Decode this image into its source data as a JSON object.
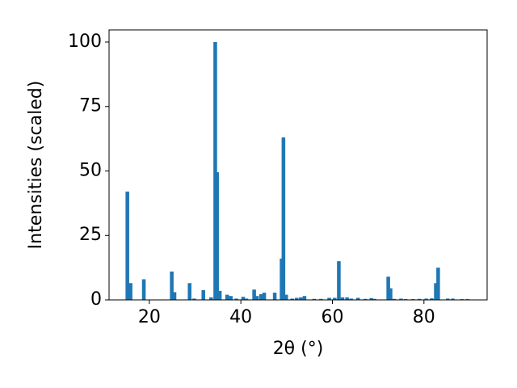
{
  "chart_data": {
    "type": "bar",
    "x_label": "2θ (°)",
    "y_label": "Intensities (scaled)",
    "color": "#1f77b4",
    "x": [
      15.2,
      15.9,
      18.8,
      24.9,
      25.5,
      28.8,
      29.8,
      31.8,
      33.5,
      34.4,
      34.8,
      35.4,
      37.0,
      37.8,
      39.0,
      40.5,
      41.2,
      42.9,
      43.5,
      44.4,
      45.1,
      47.4,
      48.9,
      49.3,
      49.9,
      51.2,
      52.2,
      53.1,
      53.9,
      56.0,
      57.5,
      59.3,
      60.5,
      61.4,
      62.2,
      63.2,
      64.1,
      65.6,
      67.2,
      68.5,
      69.2,
      72.2,
      72.7,
      73.5,
      75.0,
      76.0,
      77.6,
      79.0,
      80.5,
      81.7,
      82.6,
      83.1,
      85.2,
      86.3,
      88.3,
      89.5
    ],
    "values": [
      42,
      6.5,
      8,
      11,
      3,
      6.5,
      0.5,
      3.8,
      1,
      100,
      49.5,
      3.5,
      2,
      1.5,
      0.5,
      1.2,
      0.5,
      4,
      1.5,
      2.2,
      2.8,
      2.8,
      16,
      63,
      2,
      0.5,
      0.8,
      1,
      1.5,
      0.4,
      0.4,
      0.8,
      0.8,
      15,
      1,
      1,
      0.5,
      0.8,
      0.4,
      0.7,
      0.4,
      9,
      4.5,
      0.4,
      0.5,
      0.3,
      0.3,
      0.4,
      0.5,
      0.6,
      6.5,
      12.5,
      0.5,
      0.5,
      0.3,
      0.3
    ],
    "xlim": [
      11.2,
      93.8
    ],
    "ylim": [
      0,
      104.7
    ],
    "xticks": [
      20,
      40,
      60,
      80
    ],
    "yticks": [
      0,
      25,
      50,
      75,
      100
    ]
  }
}
